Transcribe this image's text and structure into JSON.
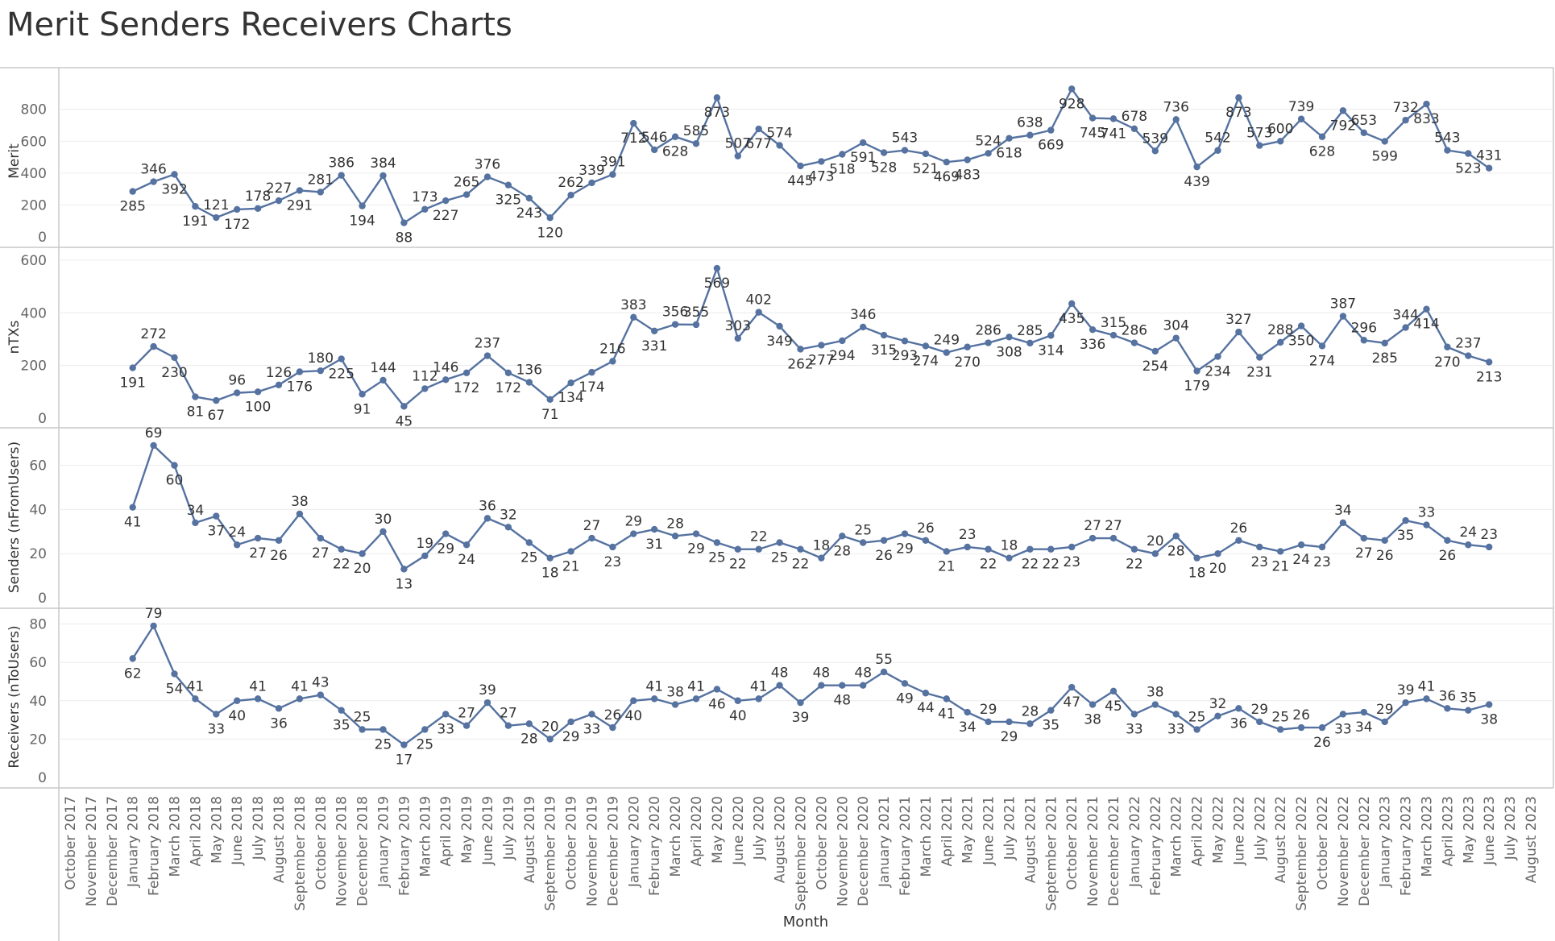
{
  "title": "Merit Senders Receivers Charts",
  "colors": {
    "line": "#5572a0",
    "grid": "#ececec",
    "border": "#c8c8c8",
    "text": "#333333",
    "axis_text": "#666666"
  },
  "chart_data": {
    "type": "line",
    "xlabel": "Month",
    "x": [
      "October 2017",
      "November 2017",
      "December 2017",
      "January 2018",
      "February 2018",
      "March 2018",
      "April 2018",
      "May 2018",
      "June 2018",
      "July 2018",
      "August 2018",
      "September 2018",
      "October 2018",
      "November 2018",
      "December 2018",
      "January 2019",
      "February 2019",
      "March 2019",
      "April 2019",
      "May 2019",
      "June 2019",
      "July 2019",
      "August 2019",
      "September 2019",
      "October 2019",
      "November 2019",
      "December 2019",
      "January 2020",
      "February 2020",
      "March 2020",
      "April 2020",
      "May 2020",
      "June 2020",
      "July 2020",
      "August 2020",
      "September 2020",
      "October 2020",
      "November 2020",
      "December 2020",
      "January 2021",
      "February 2021",
      "March 2021",
      "April 2021",
      "May 2021",
      "June 2021",
      "July 2021",
      "August 2021",
      "September 2021",
      "October 2021",
      "November 2021",
      "December 2021",
      "January 2022",
      "February 2022",
      "March 2022",
      "April 2022",
      "May 2022",
      "June 2022",
      "July 2022",
      "August 2022",
      "September 2022",
      "October 2022",
      "November 2022",
      "December 2022",
      "January 2023",
      "February 2023",
      "March 2023",
      "April 2023",
      "May 2023",
      "June 2023",
      "July 2023",
      "August 2023"
    ],
    "series": [
      {
        "name": "Merit",
        "ylim": [
          0,
          950
        ],
        "ticks": [
          0,
          200,
          400,
          600,
          800
        ],
        "values": [
          null,
          null,
          null,
          285,
          346,
          392,
          191,
          121,
          172,
          178,
          227,
          291,
          281,
          386,
          194,
          384,
          88,
          173,
          227,
          265,
          376,
          325,
          243,
          120,
          262,
          339,
          391,
          712,
          546,
          628,
          585,
          873,
          507,
          677,
          574,
          445,
          473,
          518,
          591,
          528,
          543,
          521,
          469,
          483,
          524,
          618,
          638,
          669,
          928,
          745,
          741,
          678,
          539,
          736,
          439,
          542,
          873,
          573,
          600,
          739,
          628,
          792,
          653,
          599,
          732,
          833,
          543,
          523,
          431,
          null,
          null
        ]
      },
      {
        "name": "nTXs",
        "ylim": [
          0,
          615
        ],
        "ticks": [
          0,
          200,
          400,
          600
        ],
        "values": [
          null,
          null,
          null,
          191,
          272,
          230,
          81,
          67,
          96,
          100,
          126,
          176,
          180,
          225,
          91,
          144,
          45,
          112,
          146,
          172,
          237,
          172,
          136,
          71,
          134,
          174,
          216,
          383,
          331,
          356,
          355,
          569,
          303,
          402,
          349,
          262,
          277,
          294,
          346,
          315,
          293,
          274,
          249,
          270,
          286,
          308,
          285,
          314,
          435,
          336,
          315,
          286,
          254,
          304,
          179,
          234,
          327,
          231,
          288,
          350,
          274,
          387,
          296,
          285,
          344,
          414,
          270,
          237,
          213,
          null,
          null
        ]
      },
      {
        "name": "Senders (nFromUsers)",
        "ylim": [
          0,
          73
        ],
        "ticks": [
          0,
          20,
          40,
          60
        ],
        "values": [
          null,
          null,
          null,
          41,
          69,
          60,
          34,
          37,
          24,
          27,
          26,
          38,
          27,
          22,
          20,
          30,
          13,
          19,
          29,
          24,
          36,
          32,
          25,
          18,
          21,
          27,
          23,
          29,
          31,
          28,
          29,
          25,
          22,
          22,
          25,
          22,
          18,
          28,
          25,
          26,
          29,
          26,
          21,
          23,
          22,
          18,
          22,
          22,
          23,
          27,
          27,
          22,
          20,
          28,
          18,
          20,
          26,
          23,
          21,
          24,
          23,
          34,
          27,
          26,
          35,
          33,
          26,
          24,
          23,
          null,
          null
        ]
      },
      {
        "name": "Receivers (nToUsers)",
        "ylim": [
          0,
          84
        ],
        "ticks": [
          0,
          20,
          40,
          60,
          80
        ],
        "values": [
          null,
          null,
          null,
          62,
          79,
          54,
          41,
          33,
          40,
          41,
          36,
          41,
          43,
          35,
          25,
          25,
          17,
          25,
          33,
          27,
          39,
          27,
          28,
          20,
          29,
          33,
          26,
          40,
          41,
          38,
          41,
          46,
          40,
          41,
          48,
          39,
          48,
          48,
          48,
          55,
          49,
          44,
          41,
          34,
          29,
          29,
          28,
          35,
          47,
          38,
          45,
          33,
          38,
          33,
          25,
          32,
          36,
          29,
          25,
          26,
          26,
          33,
          34,
          29,
          39,
          41,
          36,
          35,
          38,
          null,
          null
        ]
      }
    ]
  }
}
